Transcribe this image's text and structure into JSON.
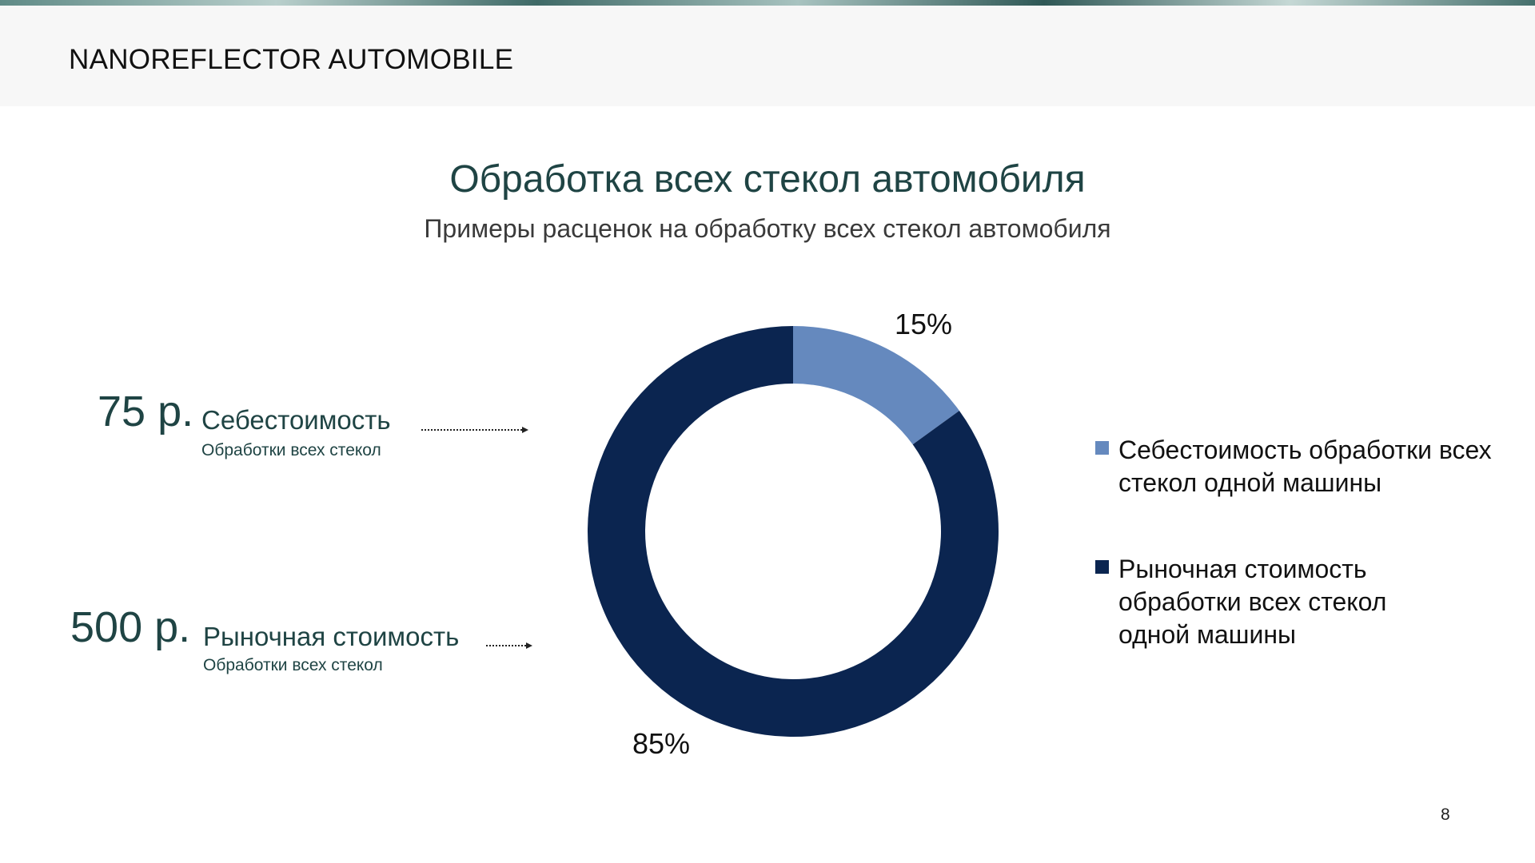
{
  "header": {
    "brand": "NANOREFLECTOR AUTOMOBILE"
  },
  "slide": {
    "title": "Обработка всех стекол автомобиля",
    "subtitle": "Примеры расценок на обработку всех стекол автомобиля",
    "page_number": "8"
  },
  "cost_items": [
    {
      "amount": "75 р.",
      "label": "Себестоимость",
      "sublabel": "Обработки всех стекол"
    },
    {
      "amount": "500 р.",
      "label": "Рыночная стоимость",
      "sublabel": "Обработки всех стекол"
    }
  ],
  "chart_data": {
    "type": "pie",
    "variant": "doughnut",
    "title": "",
    "categories": [
      "Себестоимость обработки всех стекол одной машины",
      "Рыночная стоимость обработки всех стекол одной машины"
    ],
    "values": [
      15,
      85
    ],
    "data_labels": [
      "15%",
      "85%"
    ],
    "colors": [
      "#6589be",
      "#0b2550"
    ],
    "legend_position": "right"
  }
}
